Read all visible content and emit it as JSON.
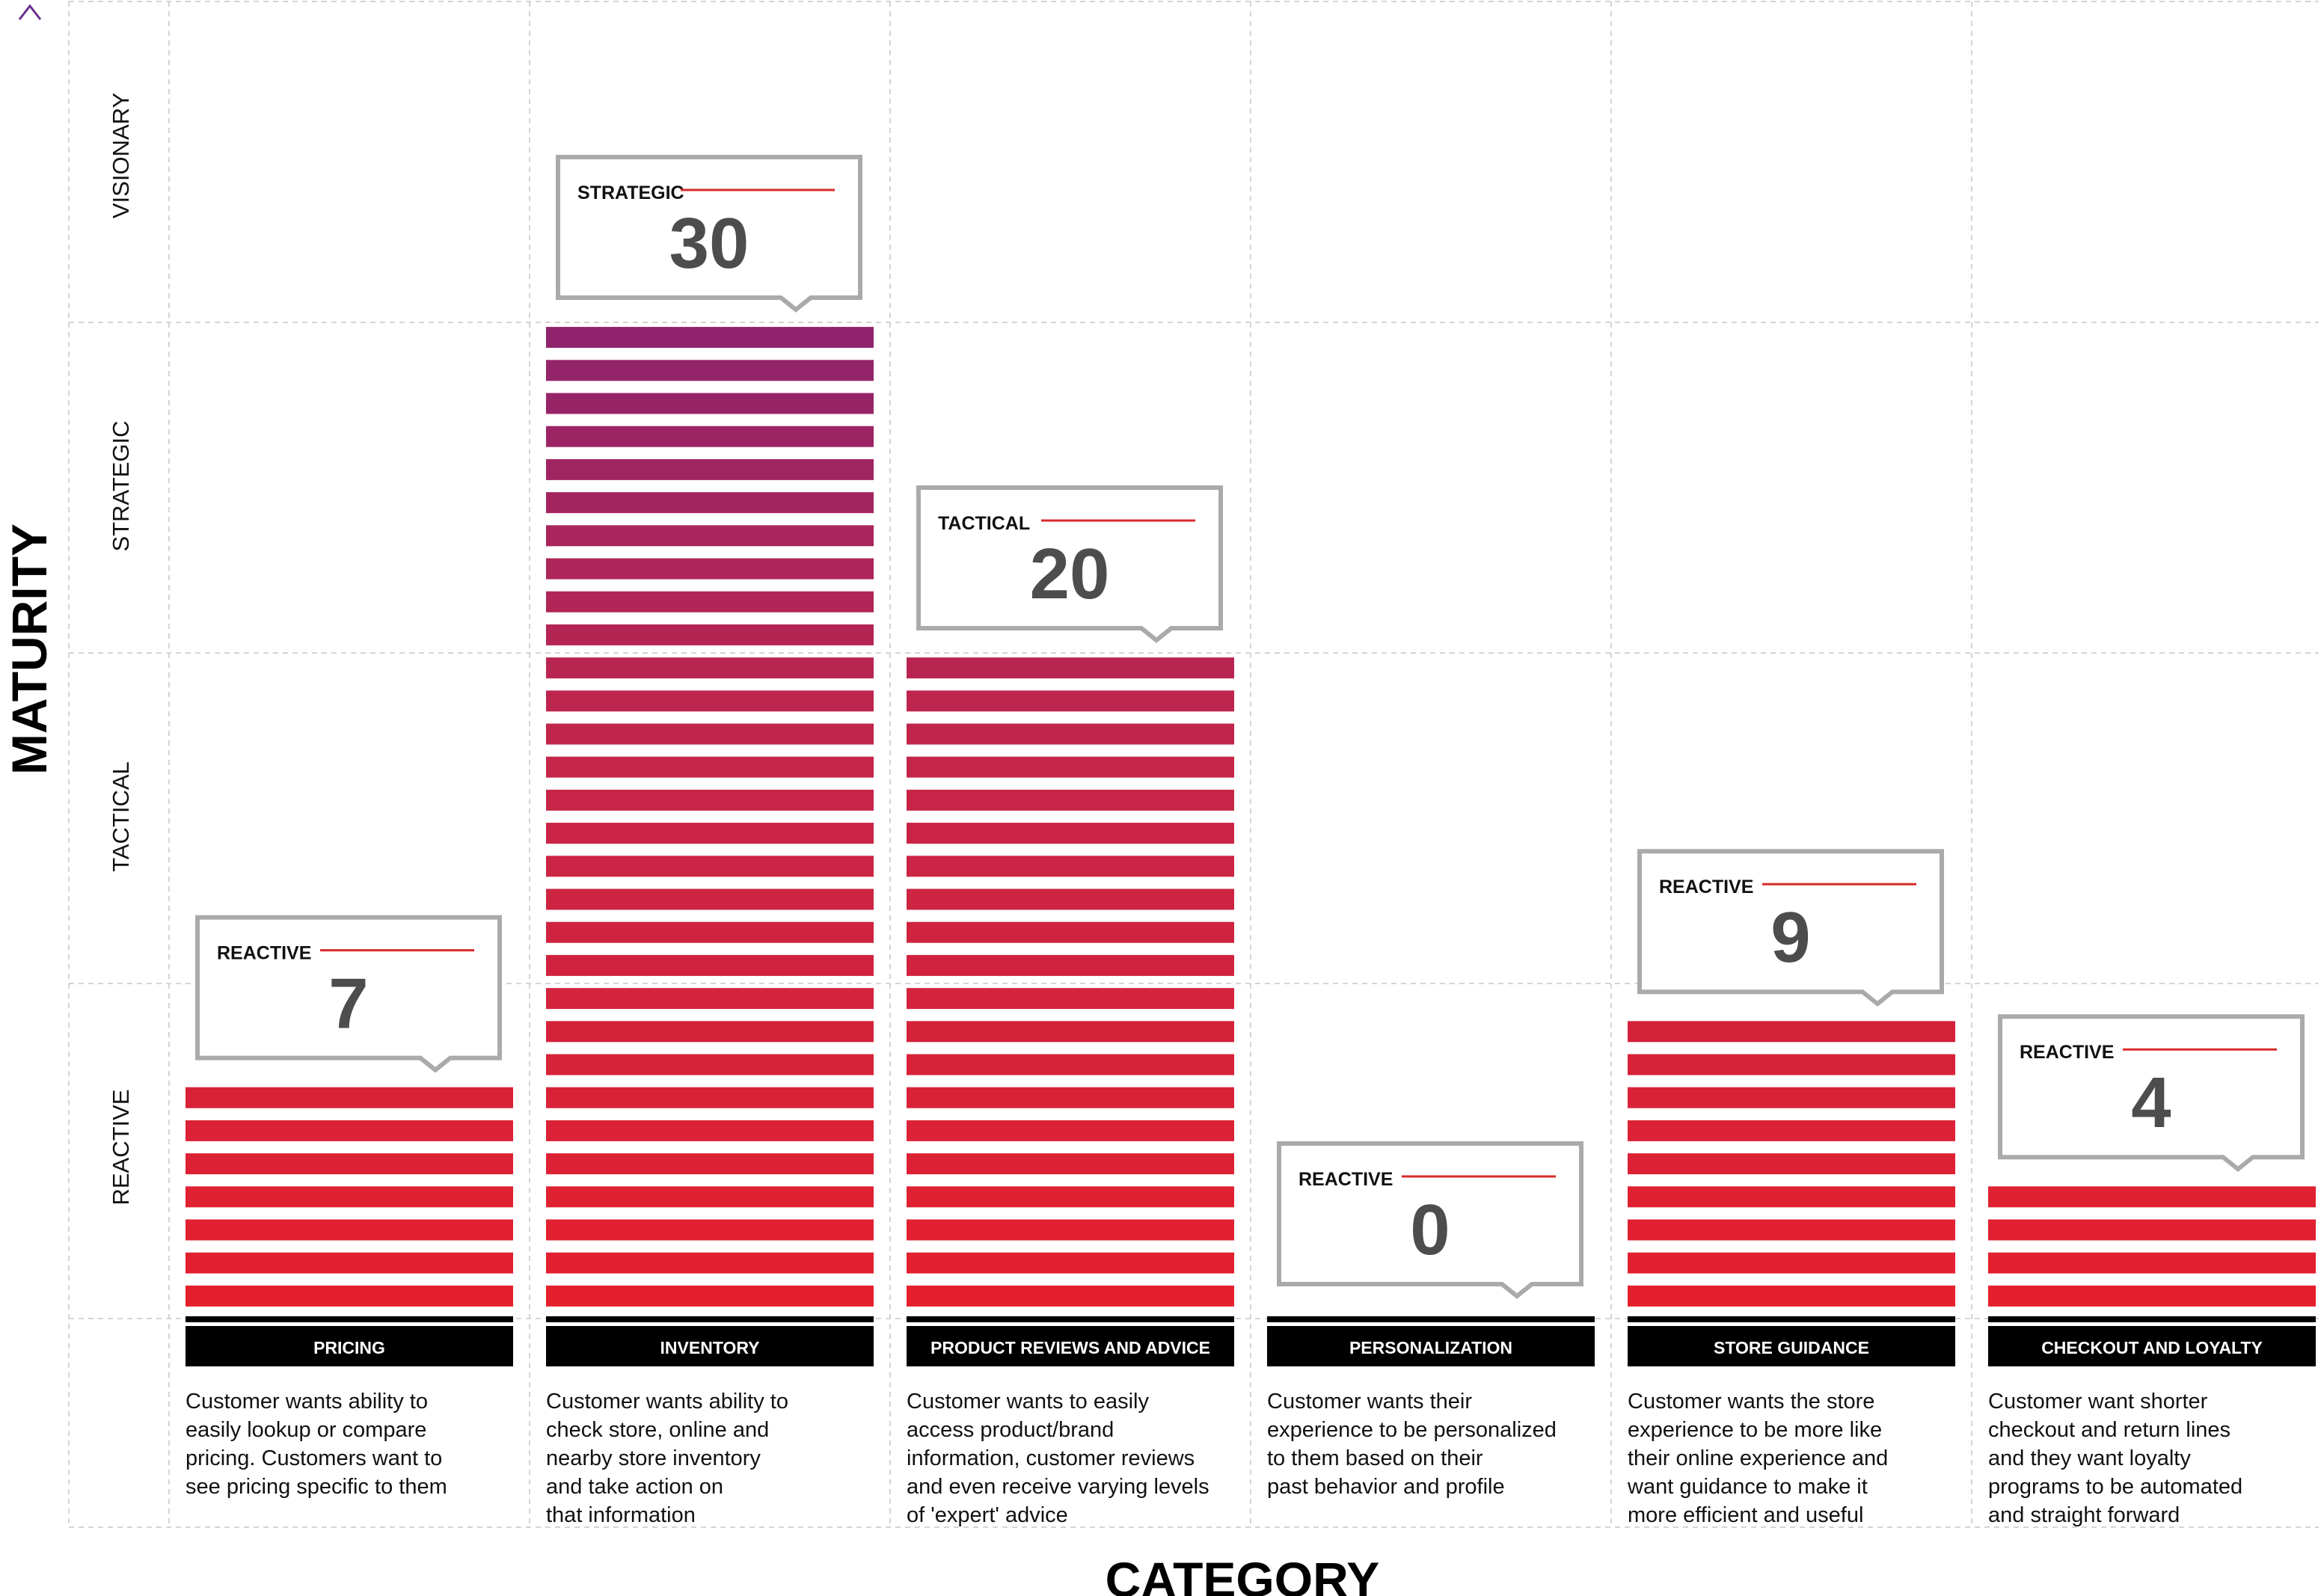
{
  "chart_data": {
    "type": "bar",
    "ylabel": "MATURITY",
    "xlabel": "CATEGORY",
    "maturity_levels": [
      "REACTIVE",
      "TACTICAL",
      "STRATEGIC",
      "VISIONARY"
    ],
    "categories": [
      "PRICING",
      "INVENTORY",
      "PRODUCT REVIEWS AND ADVICE",
      "PERSONALIZATION",
      "STORE GUIDANCE",
      "CHECKOUT AND LOYALTY"
    ],
    "values": [
      7,
      30,
      20,
      0,
      9,
      4
    ],
    "callout_levels": [
      "REACTIVE",
      "STRATEGIC",
      "TACTICAL",
      "REACTIVE",
      "REACTIVE",
      "REACTIVE"
    ],
    "descriptions": [
      [
        "Customer wants ability to",
        "easily lookup or compare",
        "pricing. Customers want to",
        "see pricing specific to them"
      ],
      [
        "Customer wants ability to",
        "check store, online and",
        "nearby store inventory",
        "and take action on",
        "that information"
      ],
      [
        "Customer wants to easily",
        "access product/brand",
        "information, customer reviews",
        "and even receive varying levels",
        "of 'expert' advice"
      ],
      [
        "Customer wants their",
        "experience to be personalized",
        "to them based on their",
        "past behavior and profile"
      ],
      [
        "Customer wants the store",
        "experience to be more like",
        "their online experience and",
        "want guidance to make it",
        "more efficient and useful"
      ],
      [
        "Customer want shorter",
        "checkout and return lines",
        "and they want loyalty",
        "programs to be automated",
        "and straight forward"
      ]
    ],
    "level_ranges": [
      [
        0,
        10
      ],
      [
        10,
        20
      ],
      [
        20,
        30
      ],
      [
        30,
        40
      ]
    ],
    "ylim": [
      0,
      40
    ],
    "grid": true,
    "colors": {
      "reactive": "#e5202d",
      "tactical": "#c4254a",
      "strategic": "#8b2470",
      "label_bg": "#000000",
      "callout_border": "#aaaaaa",
      "callout_number": "#4d4d4d",
      "callout_rule": "#d92b2b",
      "axis_bottom": "#d7202b",
      "axis_top": "#6a2f8e",
      "grid": "#d4d4d4"
    }
  }
}
